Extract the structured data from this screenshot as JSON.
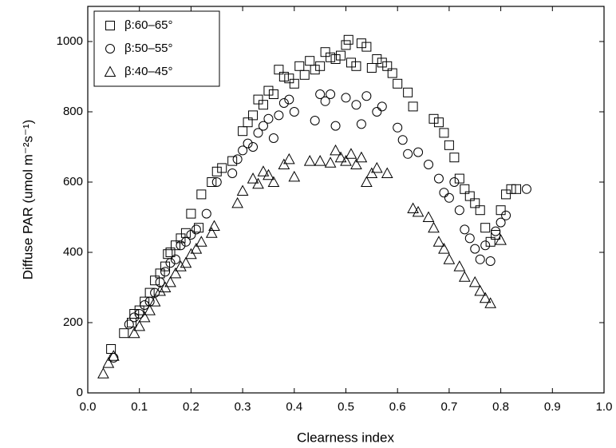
{
  "chart_data": {
    "type": "scatter",
    "xlabel": "Clearness index",
    "ylabel": "Diffuse PAR (umol m⁻²s⁻¹)",
    "xlim": [
      0,
      1
    ],
    "ylim": [
      0,
      1100
    ],
    "xticks": [
      {
        "value": 0,
        "label": "0.0"
      },
      0.1,
      0.2,
      0.3,
      0.4,
      0.5,
      0.6,
      0.7,
      0.8,
      0.9,
      {
        "value": 1,
        "label": "1.0"
      }
    ],
    "yticks": [
      0,
      200,
      400,
      600,
      800,
      1000
    ],
    "legend": "upper left",
    "series": [
      {
        "name": "β:60–65°",
        "marker": "square",
        "color": "#000000",
        "x": [
          0.045,
          0.07,
          0.085,
          0.09,
          0.1,
          0.11,
          0.12,
          0.13,
          0.14,
          0.15,
          0.155,
          0.16,
          0.17,
          0.18,
          0.19,
          0.2,
          0.215,
          0.22,
          0.24,
          0.25,
          0.26,
          0.28,
          0.3,
          0.31,
          0.32,
          0.33,
          0.34,
          0.35,
          0.36,
          0.37,
          0.38,
          0.39,
          0.4,
          0.41,
          0.42,
          0.43,
          0.44,
          0.45,
          0.46,
          0.47,
          0.48,
          0.49,
          0.5,
          0.505,
          0.51,
          0.52,
          0.53,
          0.54,
          0.55,
          0.56,
          0.57,
          0.58,
          0.59,
          0.6,
          0.62,
          0.63,
          0.67,
          0.68,
          0.69,
          0.7,
          0.71,
          0.72,
          0.73,
          0.74,
          0.75,
          0.76,
          0.77,
          0.78,
          0.79,
          0.8,
          0.81,
          0.82,
          0.83
        ],
        "values": [
          125,
          170,
          200,
          225,
          235,
          260,
          285,
          320,
          340,
          360,
          395,
          400,
          420,
          440,
          455,
          510,
          470,
          565,
          600,
          630,
          640,
          660,
          745,
          770,
          790,
          835,
          820,
          860,
          850,
          920,
          900,
          895,
          880,
          930,
          905,
          945,
          920,
          930,
          970,
          955,
          950,
          960,
          990,
          1005,
          940,
          930,
          995,
          985,
          925,
          950,
          940,
          930,
          910,
          880,
          855,
          815,
          780,
          770,
          740,
          705,
          670,
          610,
          580,
          560,
          540,
          520,
          470,
          430,
          450,
          520,
          565,
          580,
          580
        ]
      },
      {
        "name": "β:50–55°",
        "marker": "circle",
        "color": "#000000",
        "x": [
          0.05,
          0.08,
          0.09,
          0.1,
          0.11,
          0.12,
          0.13,
          0.14,
          0.15,
          0.16,
          0.17,
          0.18,
          0.19,
          0.2,
          0.21,
          0.23,
          0.25,
          0.28,
          0.29,
          0.3,
          0.31,
          0.32,
          0.33,
          0.34,
          0.35,
          0.36,
          0.37,
          0.38,
          0.39,
          0.4,
          0.44,
          0.45,
          0.46,
          0.47,
          0.48,
          0.5,
          0.52,
          0.53,
          0.54,
          0.56,
          0.57,
          0.6,
          0.61,
          0.62,
          0.64,
          0.66,
          0.68,
          0.69,
          0.7,
          0.71,
          0.72,
          0.73,
          0.74,
          0.75,
          0.76,
          0.77,
          0.78,
          0.79,
          0.8,
          0.81,
          0.85
        ],
        "values": [
          100,
          195,
          215,
          225,
          250,
          260,
          285,
          315,
          345,
          370,
          380,
          420,
          430,
          450,
          465,
          510,
          600,
          625,
          665,
          690,
          710,
          700,
          740,
          760,
          780,
          725,
          790,
          825,
          835,
          800,
          775,
          850,
          830,
          850,
          760,
          840,
          820,
          765,
          845,
          800,
          815,
          755,
          720,
          680,
          685,
          650,
          610,
          570,
          555,
          600,
          520,
          465,
          440,
          410,
          380,
          420,
          375,
          460,
          485,
          505,
          580
        ]
      },
      {
        "name": "β:40–45°",
        "marker": "triangle",
        "color": "#000000",
        "x": [
          0.03,
          0.04,
          0.05,
          0.09,
          0.1,
          0.11,
          0.12,
          0.13,
          0.14,
          0.15,
          0.16,
          0.17,
          0.18,
          0.19,
          0.2,
          0.21,
          0.22,
          0.24,
          0.245,
          0.29,
          0.3,
          0.32,
          0.33,
          0.34,
          0.35,
          0.36,
          0.38,
          0.39,
          0.4,
          0.43,
          0.45,
          0.47,
          0.48,
          0.49,
          0.5,
          0.51,
          0.52,
          0.53,
          0.54,
          0.55,
          0.56,
          0.58,
          0.63,
          0.64,
          0.66,
          0.67,
          0.68,
          0.69,
          0.7,
          0.72,
          0.73,
          0.75,
          0.76,
          0.77,
          0.78,
          0.8
        ],
        "values": [
          55,
          85,
          105,
          170,
          190,
          215,
          235,
          260,
          290,
          300,
          315,
          340,
          360,
          370,
          395,
          410,
          430,
          455,
          475,
          540,
          575,
          610,
          595,
          630,
          620,
          600,
          650,
          665,
          615,
          660,
          660,
          655,
          690,
          670,
          660,
          680,
          650,
          670,
          600,
          625,
          640,
          625,
          525,
          515,
          500,
          470,
          430,
          410,
          380,
          360,
          330,
          315,
          290,
          270,
          255,
          435
        ]
      }
    ]
  }
}
